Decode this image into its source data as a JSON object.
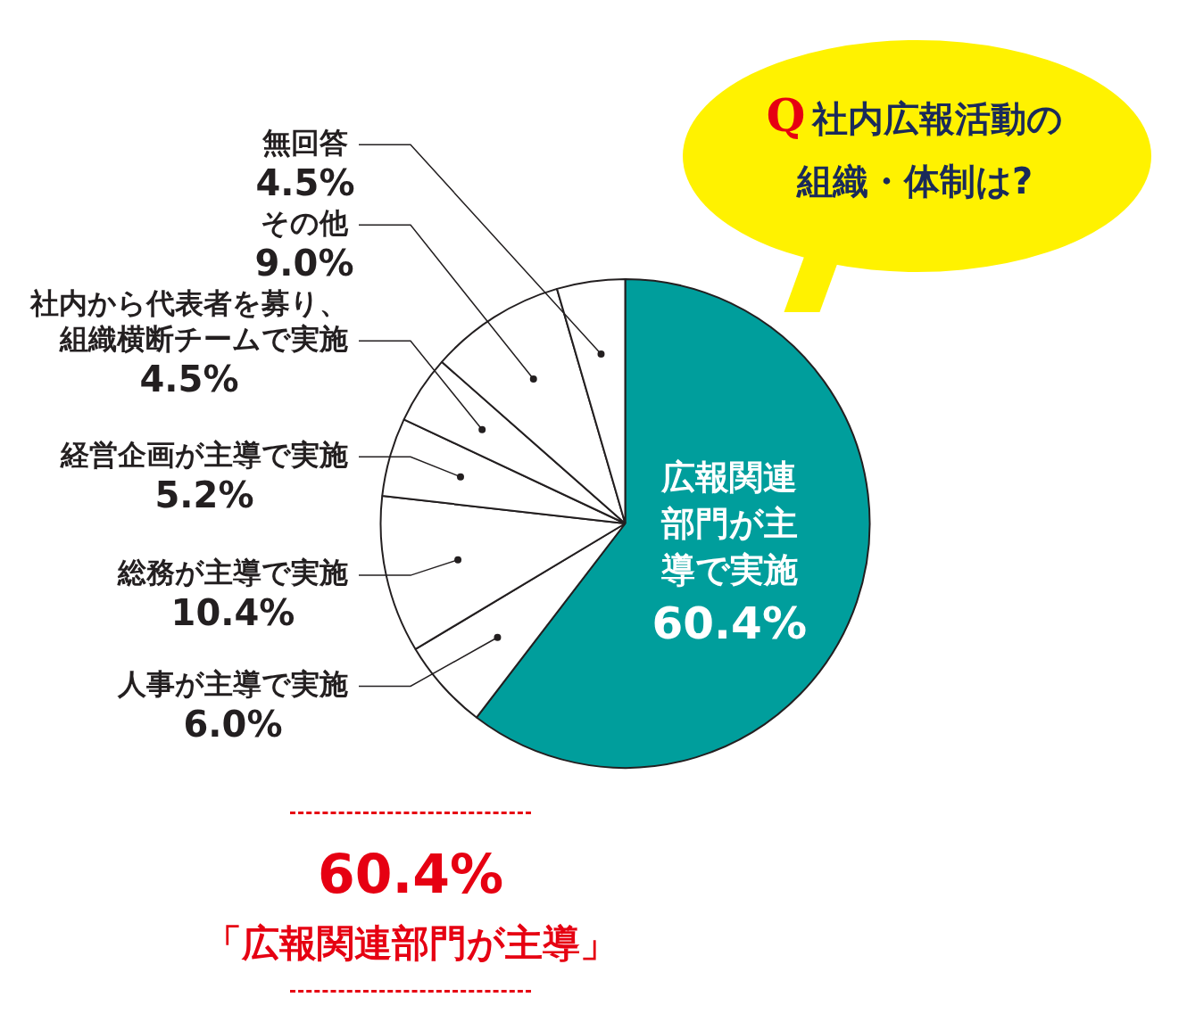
{
  "chart_data": {
    "type": "pie",
    "title": "Q 社内広報活動の組織・体制は?",
    "categories": [
      "広報関連部門が主導で実施",
      "人事が主導で実施",
      "総務が主導で実施",
      "経営企画が主導で実施",
      "社内から代表者を募り、組織横断チームで実施",
      "その他",
      "無回答"
    ],
    "values": [
      60.4,
      6.0,
      10.4,
      5.2,
      4.5,
      9.0,
      4.5
    ],
    "colors": [
      "#009e9c",
      "#ffffff",
      "#ffffff",
      "#ffffff",
      "#ffffff",
      "#ffffff",
      "#ffffff"
    ],
    "value_labels": [
      "60.4%",
      "6.0%",
      "10.4%",
      "5.2%",
      "4.5%",
      "9.0%",
      "4.5%"
    ],
    "legend": false,
    "annotations": [
      "60.4%",
      "「広報関連部門が主導」"
    ]
  }
}
